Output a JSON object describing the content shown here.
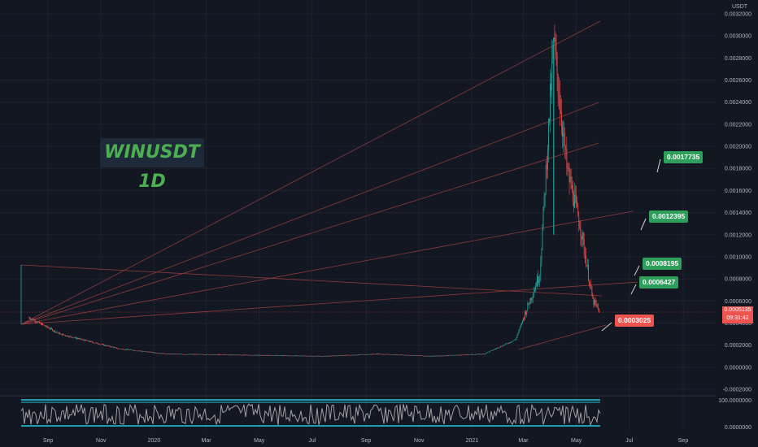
{
  "title": "WINUSDT 1D",
  "currency": "USDT",
  "current_price": {
    "value": "0.0005135",
    "countdown": "09:31:42"
  },
  "callouts": [
    {
      "label": "0.0017735",
      "color": "green"
    },
    {
      "label": "0.0012395",
      "color": "green"
    },
    {
      "label": "0.0008195",
      "color": "green"
    },
    {
      "label": "0.0006427",
      "color": "green"
    },
    {
      "label": "0.0003025",
      "color": "red"
    }
  ],
  "price_axis_labels": [
    "0.0032000",
    "0.0030000",
    "0.0028000",
    "0.0026000",
    "0.0024000",
    "0.0022000",
    "0.0020000",
    "0.0018000",
    "0.0016000",
    "0.0014000",
    "0.0012000",
    "0.0010000",
    "0.0008000",
    "0.0006000",
    "0.0004000",
    "0.0002000",
    "0.0000000",
    "-0.0002000"
  ],
  "oscillator_labels": [
    "100.0000000",
    "0.0000000"
  ],
  "time_axis_labels": [
    "Sep",
    "Nov",
    "2020",
    "Mar",
    "May",
    "Jul",
    "Sep",
    "Nov",
    "2021",
    "Mar",
    "May",
    "Jul",
    "Sep"
  ],
  "colors": {
    "background": "#131722",
    "up": "#26a69a",
    "down": "#ef5350",
    "trendline": "#8e3a3a",
    "oscillator_line": "#a0a0a0",
    "oscillator_band": "#26c6da",
    "label_green": "#2e9e5b",
    "label_red": "#ef5350"
  },
  "chart_data": {
    "type": "candlestick",
    "title": "WINUSDT 1D",
    "ylim": [
      -0.0002,
      0.0032
    ],
    "x_start": "2019-08",
    "x_end": "2021-09",
    "approx_close_series": [
      {
        "date": "2019-08-10",
        "close": 0.00045
      },
      {
        "date": "2019-09-15",
        "close": 0.0003
      },
      {
        "date": "2019-10-15",
        "close": 0.00024
      },
      {
        "date": "2019-11-20",
        "close": 0.00017
      },
      {
        "date": "2020-01-15",
        "close": 0.00012
      },
      {
        "date": "2020-04-15",
        "close": 0.00011
      },
      {
        "date": "2020-07-15",
        "close": 0.0001
      },
      {
        "date": "2020-09-15",
        "close": 0.00012
      },
      {
        "date": "2020-11-15",
        "close": 0.0001
      },
      {
        "date": "2021-01-15",
        "close": 0.00012
      },
      {
        "date": "2021-02-20",
        "close": 0.00025
      },
      {
        "date": "2021-03-20",
        "close": 0.00085
      },
      {
        "date": "2021-04-05",
        "close": 0.00295
      },
      {
        "date": "2021-04-20",
        "close": 0.0018
      },
      {
        "date": "2021-05-05",
        "close": 0.0013
      },
      {
        "date": "2021-05-20",
        "close": 0.0006
      },
      {
        "date": "2021-05-27",
        "close": 0.0005135
      }
    ],
    "targets": [
      0.0017735,
      0.0012395,
      0.0008195,
      0.0006427,
      0.0003025
    ],
    "oscillator_range": [
      0,
      100
    ]
  }
}
